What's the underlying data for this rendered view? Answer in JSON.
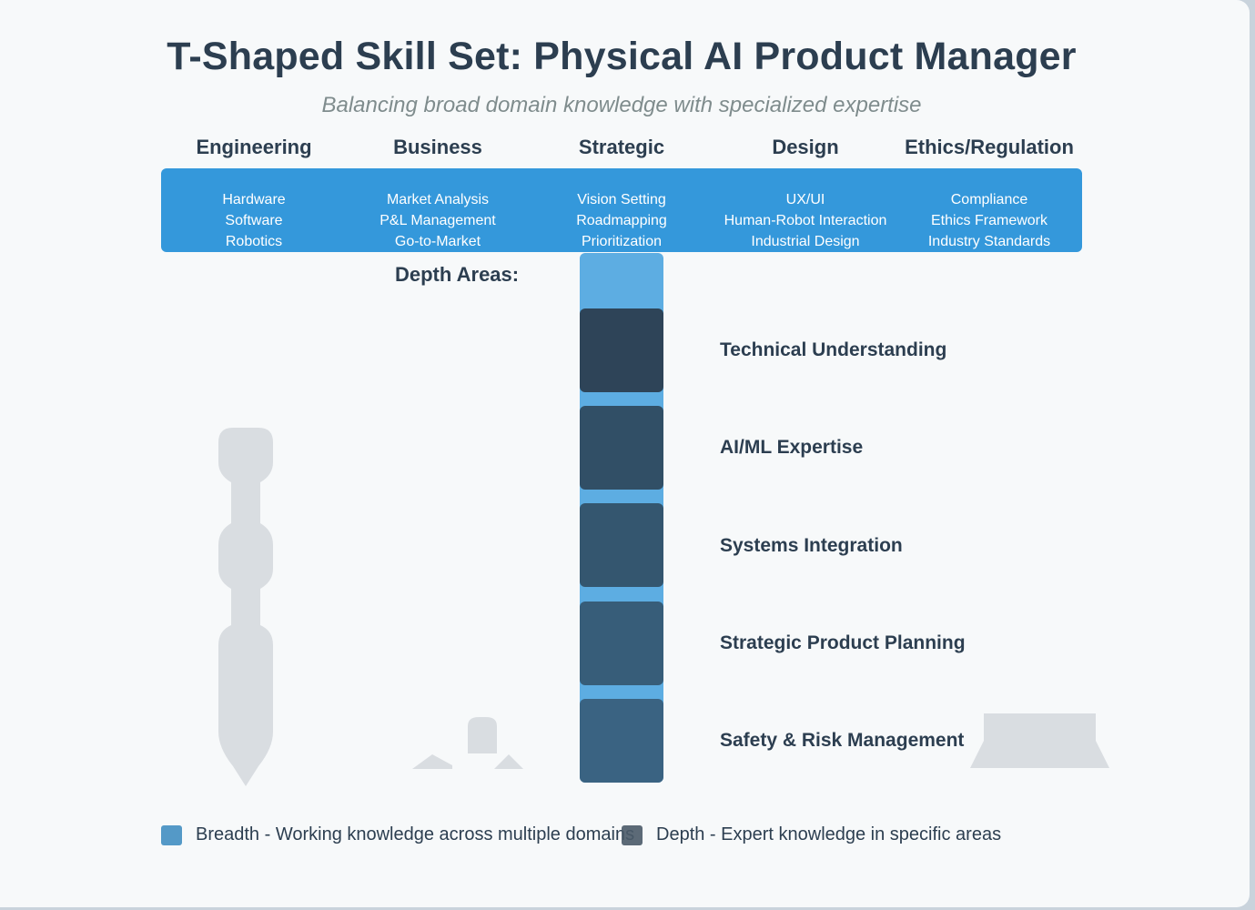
{
  "title": "T-Shaped Skill Set: Physical AI Product Manager",
  "subtitle": "Balancing broad domain knowledge with specialized expertise",
  "columns": [
    {
      "header": "Engineering",
      "items": [
        "Hardware",
        "Software",
        "Robotics"
      ]
    },
    {
      "header": "Business",
      "items": [
        "Market Analysis",
        "P&L Management",
        "Go-to-Market"
      ]
    },
    {
      "header": "Strategic",
      "items": [
        "Vision Setting",
        "Roadmapping",
        "Prioritization"
      ]
    },
    {
      "header": "Design",
      "items": [
        "UX/UI",
        "Human-Robot Interaction",
        "Industrial Design"
      ]
    },
    {
      "header": "Ethics/Regulation",
      "items": [
        "Compliance",
        "Ethics Framework",
        "Industry Standards"
      ]
    }
  ],
  "depth_title": "Depth Areas:",
  "depth_areas": [
    "Technical Understanding",
    "AI/ML Expertise",
    "Systems Integration",
    "Strategic Product Planning",
    "Safety & Risk Management"
  ],
  "legend": {
    "breadth": "Breadth - Working knowledge across multiple domains",
    "depth": "Depth - Expert knowledge in specific areas"
  },
  "colors": {
    "breadth": "#3498db",
    "stem": "#5dade2",
    "depth_blocks": [
      "#2e4458",
      "#314f66",
      "#34566f",
      "#375d79",
      "#3a6382"
    ],
    "legend_breadth": "#5499c7",
    "legend_depth": "#4a5a68",
    "silhouette": "#d9dde1"
  },
  "icons": [
    "robot-arm-icon",
    "robot-icon",
    "conveyor-icon"
  ]
}
